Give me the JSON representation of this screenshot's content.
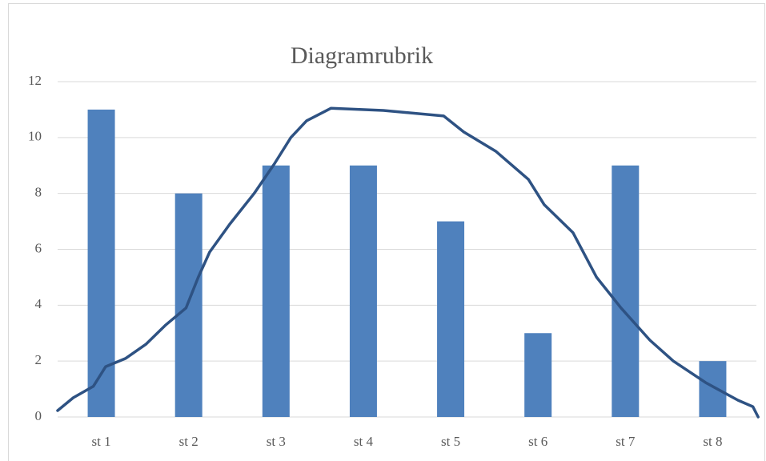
{
  "chart_data": {
    "type": "bar",
    "title": "Diagramrubrik",
    "categories": [
      "st 1",
      "st 2",
      "st 3",
      "st 4",
      "st 5",
      "st 6",
      "st 7",
      "st 8"
    ],
    "values": [
      11,
      8,
      9,
      9,
      7,
      3,
      9,
      2
    ],
    "color": "#4f81bd",
    "ylim": [
      0,
      12
    ],
    "yticks": [
      0,
      2,
      4,
      6,
      8,
      10,
      12
    ],
    "grid": true,
    "line": {
      "color": "#2e5283",
      "x": [
        0.5,
        0.68,
        0.91,
        1.05,
        1.28,
        1.51,
        1.74,
        1.97,
        2.11,
        2.24,
        2.47,
        2.75,
        2.98,
        3.17,
        3.35,
        3.63,
        4.23,
        4.92,
        5.15,
        5.52,
        5.89,
        6.07,
        6.4,
        6.67,
        6.95,
        7.28,
        7.55,
        7.92,
        8.29,
        8.46,
        8.52
      ],
      "values": [
        0.23,
        0.69,
        1.1,
        1.8,
        2.1,
        2.6,
        3.3,
        3.9,
        5.0,
        5.9,
        6.9,
        8.0,
        9.05,
        10.0,
        10.6,
        11.05,
        10.97,
        10.77,
        10.2,
        9.5,
        8.5,
        7.6,
        6.6,
        5.0,
        3.9,
        2.75,
        2.0,
        1.23,
        0.6,
        0.37,
        0
      ]
    }
  }
}
